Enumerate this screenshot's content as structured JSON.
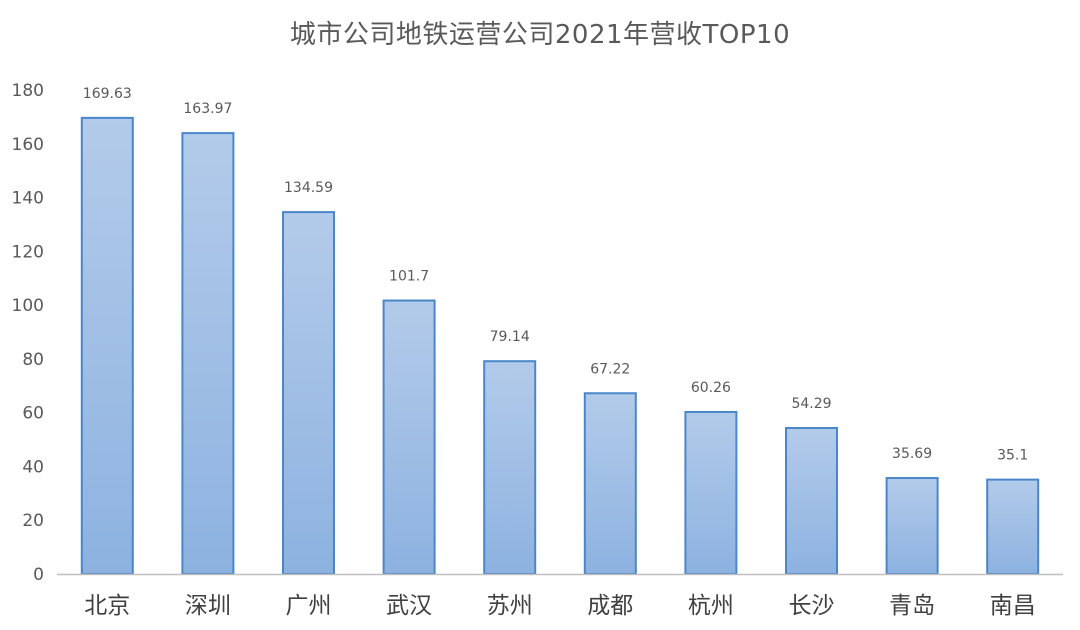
{
  "chart_data": {
    "type": "bar",
    "title": "城市公司地铁运营公司2021年营收TOP10",
    "categories": [
      "北京",
      "深圳",
      "广州",
      "武汉",
      "苏州",
      "成都",
      "杭州",
      "长沙",
      "青岛",
      "南昌"
    ],
    "values": [
      169.63,
      163.97,
      134.59,
      101.7,
      79.14,
      67.22,
      60.26,
      54.29,
      35.69,
      35.1
    ],
    "data_labels": [
      "169.63",
      "163.97",
      "134.59",
      "101.7",
      "79.14",
      "67.22",
      "60.26",
      "54.29",
      "35.69",
      "35.1"
    ],
    "y_ticks": [
      "0",
      "20",
      "40",
      "60",
      "80",
      "100",
      "120",
      "140",
      "160",
      "180"
    ],
    "ylim": [
      0,
      180
    ],
    "grid": false,
    "legend": "none",
    "colors": {
      "bar_fill_top": "#b3cbea",
      "bar_fill_bottom": "#8db2e0",
      "bar_stroke": "#4a86c8",
      "axis": "#bfbfbf",
      "tick_text": "#595959",
      "category_text": "#404040",
      "label_text": "#595959",
      "title_text": "#595959"
    }
  }
}
